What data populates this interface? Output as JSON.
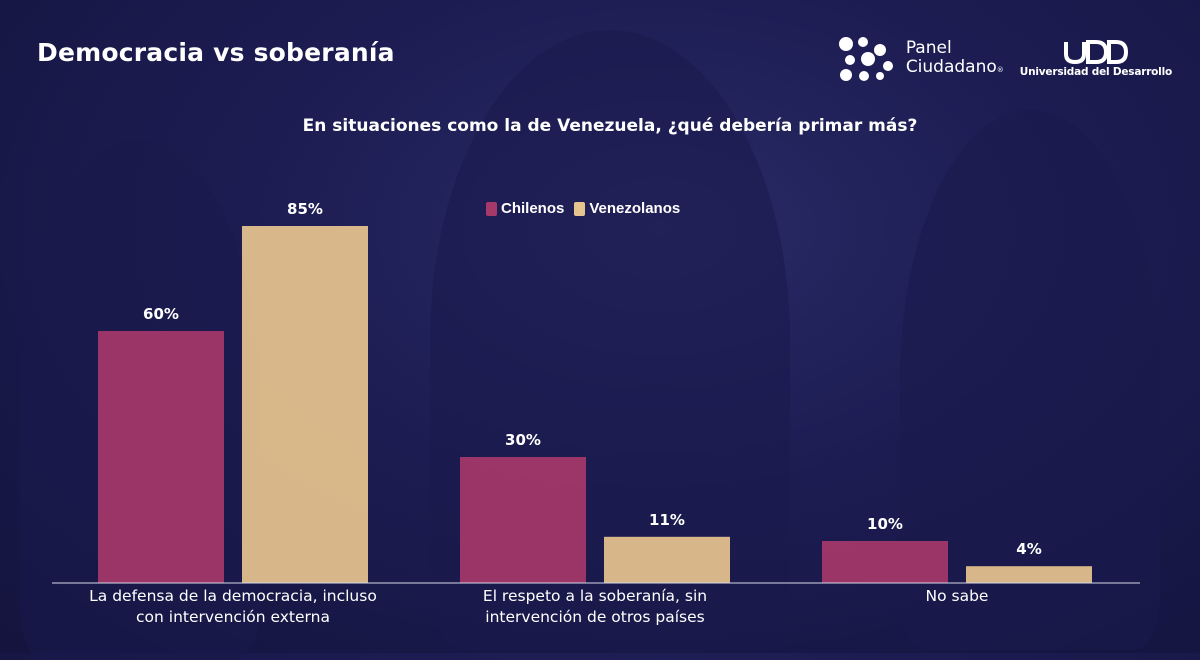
{
  "header": {
    "title": "Democracia vs soberanía",
    "question": "En situaciones como la de Venezuela, ¿qué debería primar más?"
  },
  "logos": {
    "panel_line1": "Panel",
    "panel_line2": "Ciudadano",
    "panel_mark": "®",
    "udd_mark": "UDD",
    "udd_name": "Universidad del Desarrollo"
  },
  "colors": {
    "chilenos": "#a6386a",
    "venezolanos": "#e6c48e",
    "axis": "#d8d8e8"
  },
  "chart_data": {
    "type": "bar",
    "title": "",
    "xlabel": "",
    "ylabel": "",
    "ylim": [
      0,
      100
    ],
    "grid": false,
    "legend_position": "top-center",
    "categories": [
      [
        "La defensa de la democracia, incluso",
        "con intervención externa"
      ],
      [
        "El respeto a la soberanía, sin",
        "intervención de otros países"
      ],
      [
        "No sabe"
      ]
    ],
    "series": [
      {
        "name": "Chilenos",
        "values": [
          60,
          30,
          10
        ],
        "labels": [
          "60%",
          "30%",
          "10%"
        ]
      },
      {
        "name": "Venezolanos",
        "values": [
          85,
          11,
          4
        ],
        "labels": [
          "85%",
          "11%",
          "4%"
        ]
      }
    ]
  }
}
